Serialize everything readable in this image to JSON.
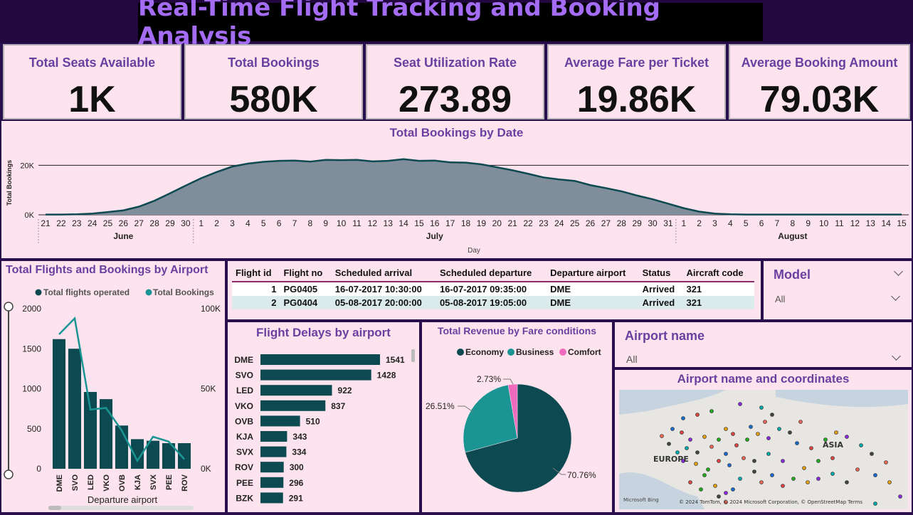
{
  "header": {
    "title": "Real-Time Flight Tracking and Booking Analysis"
  },
  "kpis": [
    {
      "label": "Total Seats Available",
      "value": "1K"
    },
    {
      "label": "Total Bookings",
      "value": "580K"
    },
    {
      "label": "Seat Utilization Rate",
      "value": "273.89"
    },
    {
      "label": "Average Fare per Ticket",
      "value": "19.86K"
    },
    {
      "label": "Average Booking Amount",
      "value": "79.03K"
    }
  ],
  "colors": {
    "teal_dark": "#0d4950",
    "teal": "#1a9593",
    "pink": "#f06bbd",
    "area_fill": "#808e9b",
    "title_purple": "#6b3fa0",
    "panel_bg": "#fde3ee"
  },
  "chart_data": [
    {
      "type": "area",
      "title": "Total Bookings by Date",
      "xlabel": "Day",
      "ylabel": "Total Bookings",
      "y_ticks": [
        "0K",
        "20K"
      ],
      "ylim": [
        0,
        25000
      ],
      "months": [
        {
          "name": "June",
          "center_day": "26"
        },
        {
          "name": "July",
          "center_day": "16"
        },
        {
          "name": "August",
          "center_day": "8"
        }
      ],
      "x": [
        "21",
        "22",
        "23",
        "24",
        "25",
        "26",
        "27",
        "28",
        "29",
        "30",
        "1",
        "2",
        "3",
        "4",
        "5",
        "6",
        "7",
        "8",
        "9",
        "10",
        "11",
        "12",
        "13",
        "14",
        "15",
        "16",
        "17",
        "18",
        "19",
        "20",
        "21",
        "22",
        "23",
        "24",
        "25",
        "26",
        "27",
        "28",
        "29",
        "30",
        "31",
        "1",
        "2",
        "3",
        "4",
        "5",
        "6",
        "7",
        "8",
        "9",
        "10",
        "11",
        "12",
        "13",
        "14",
        "15"
      ],
      "values": [
        100,
        100,
        200,
        500,
        1100,
        1800,
        3300,
        5700,
        8700,
        11800,
        14800,
        17300,
        19500,
        20700,
        21400,
        21800,
        21900,
        21500,
        22200,
        22100,
        22200,
        21600,
        21800,
        22500,
        21800,
        21900,
        21200,
        21100,
        20400,
        19200,
        18000,
        16600,
        15100,
        14300,
        13700,
        12000,
        10800,
        9500,
        7800,
        6300,
        4500,
        2700,
        1300,
        500,
        200,
        100,
        100,
        100,
        100,
        100,
        100,
        100,
        100,
        100,
        100,
        100
      ]
    },
    {
      "type": "bar",
      "title": "Total Flights and Bookings by Airport",
      "xlabel": "Departure airport",
      "legend": [
        "Total flights operated",
        "Total Bookings"
      ],
      "categories": [
        "DME",
        "SVO",
        "LED",
        "VKO",
        "OVB",
        "KJA",
        "SVX",
        "PEE",
        "ROV"
      ],
      "y_ticks_left": [
        "0",
        "500",
        "1000",
        "1500",
        "2000"
      ],
      "y_ticks_right": [
        "0K",
        "50K",
        "100K"
      ],
      "ylim_left": [
        0,
        2000
      ],
      "ylim_right": [
        0,
        100000
      ],
      "series": [
        {
          "name": "Total flights operated",
          "values": [
            1620,
            1500,
            960,
            870,
            540,
            370,
            350,
            320,
            320
          ]
        },
        {
          "name": "Total Bookings",
          "values": [
            84000,
            94000,
            37000,
            38000,
            24000,
            5000,
            20000,
            17000,
            6000
          ]
        }
      ]
    },
    {
      "type": "bar",
      "title": "Flight Delays by airport",
      "categories": [
        "DME",
        "SVO",
        "LED",
        "VKO",
        "OVB",
        "KJA",
        "SVX",
        "ROV",
        "PEE",
        "BZK"
      ],
      "values": [
        1541,
        1428,
        922,
        837,
        510,
        343,
        334,
        300,
        296,
        291
      ],
      "labels": [
        "1541",
        "1428",
        "922",
        "837",
        "510",
        "343",
        "334",
        "300",
        "296",
        "291"
      ],
      "xlim": [
        0,
        1600
      ]
    },
    {
      "type": "pie",
      "title": "Total Revenue by Fare conditions",
      "legend": [
        "Economy",
        "Business",
        "Comfort"
      ],
      "values": [
        70.76,
        26.51,
        2.73
      ],
      "labels": [
        "70.76%",
        "26.51%",
        "2.73%"
      ]
    }
  ],
  "table": {
    "columns": [
      "Flight id",
      "Flight no",
      "Scheduled arrival",
      "Scheduled departure",
      "Departure airport",
      "Status",
      "Aircraft code"
    ],
    "rows": [
      [
        "1",
        "PG0405",
        "16-07-2017 10:30:00",
        "16-07-2017 09:35:00",
        "DME",
        "Arrived",
        "321"
      ],
      [
        "2",
        "PG0404",
        "05-08-2017 20:00:00",
        "05-08-2017 19:05:00",
        "DME",
        "Arrived",
        "321"
      ]
    ]
  },
  "slicers": {
    "model": {
      "label": "Model",
      "value": "All"
    },
    "airport": {
      "label": "Airport name",
      "value": "All"
    }
  },
  "map": {
    "title": "Airport name and coordinates",
    "labels": {
      "europe": "EUROPE",
      "asia": "ASIA"
    },
    "attribution": "© 2024 TomTom, © 2024 Microsoft Corporation, © OpenStreetMap  Terms",
    "brand": "Microsoft Bing"
  }
}
